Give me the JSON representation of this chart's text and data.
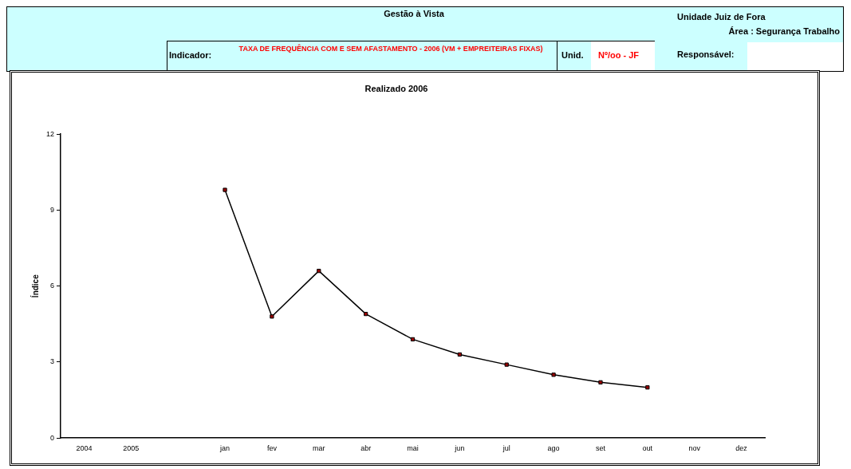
{
  "chart_data": {
    "type": "line",
    "title": "Realizado 2006",
    "ylabel": "Índice",
    "categories": [
      "2004",
      "2005",
      null,
      "jan",
      "fev",
      "mar",
      "abr",
      "mai",
      "jun",
      "jul",
      "ago",
      "set",
      "out",
      "nov",
      "dez"
    ],
    "series": [
      {
        "color": "#000000",
        "values": [
          null,
          null,
          null,
          9.8,
          4.8,
          6.6,
          4.9,
          3.9,
          3.3,
          2.9,
          2.5,
          2.2,
          2.0,
          null,
          null
        ]
      }
    ],
    "ylim": [
      0,
      12
    ],
    "yticks": [
      0,
      3,
      6,
      9,
      12
    ],
    "grid": false,
    "legend": false,
    "marker": "square",
    "line_style": "solid",
    "annotations": [
      "Gestão à Vista",
      "Unidade Juiz de Fora",
      "Área : Segurança Trabalho",
      "Indicador:",
      "TAXA DE FREQUÊNCIA COM E SEM AFASTAMENTO - 2006 (VM + EMPREITEIRAS FIXAS)",
      "Unid.",
      "Nº/oo - JF",
      "Responsável:"
    ]
  }
}
